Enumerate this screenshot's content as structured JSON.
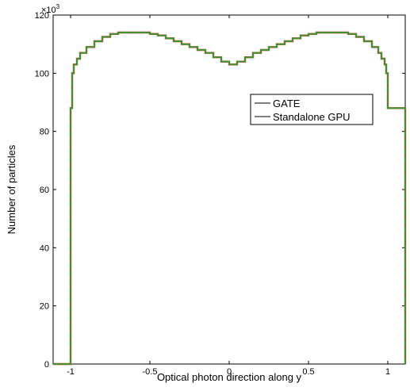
{
  "chart_data": {
    "type": "line",
    "style": "step-histogram",
    "xlabel": "Optical photon direction along y",
    "ylabel": "Number of particles",
    "y_multiplier": "×10",
    "y_multiplier_exponent": "3",
    "xlim": [
      -1.11,
      1.11
    ],
    "ylim": [
      0,
      120
    ],
    "x_ticks": [
      -1,
      -0.5,
      0,
      0.5,
      1
    ],
    "x_tick_labels": [
      "-1",
      "-0.5",
      "0",
      "0.5",
      "1"
    ],
    "y_ticks": [
      0,
      20,
      40,
      60,
      80,
      100,
      120
    ],
    "y_tick_labels": [
      "0",
      "20",
      "40",
      "60",
      "80",
      "100",
      "120"
    ],
    "grid": false,
    "legend_position": "upper-right",
    "x": [
      -1.12,
      -1.0,
      -0.99,
      -0.98,
      -0.96,
      -0.94,
      -0.9,
      -0.85,
      -0.8,
      -0.75,
      -0.7,
      -0.65,
      -0.6,
      -0.55,
      -0.5,
      -0.45,
      -0.4,
      -0.35,
      -0.3,
      -0.25,
      -0.2,
      -0.15,
      -0.1,
      -0.05,
      0,
      0.05,
      0.1,
      0.15,
      0.2,
      0.25,
      0.3,
      0.35,
      0.4,
      0.45,
      0.5,
      0.55,
      0.6,
      0.65,
      0.7,
      0.75,
      0.8,
      0.85,
      0.9,
      0.94,
      0.96,
      0.98,
      0.99,
      1.0,
      1.12
    ],
    "series": [
      {
        "name": "GATE",
        "color": "#d62728",
        "values": [
          0,
          88,
          100,
          103,
          105,
          107,
          109,
          111,
          112.5,
          113.5,
          114,
          114,
          114,
          114,
          113.5,
          113,
          112,
          111,
          110,
          109,
          108,
          107,
          105.5,
          104,
          103,
          104,
          105.5,
          107,
          108,
          109,
          110,
          111,
          112,
          113,
          113.5,
          114,
          114,
          114,
          114,
          113.5,
          112.5,
          111,
          109,
          107,
          105,
          103,
          100,
          88,
          0
        ]
      },
      {
        "name": "Standalone GPU",
        "color": "#2ca02c",
        "values": [
          0,
          88,
          100,
          103,
          105,
          107,
          109,
          111,
          112.5,
          113.5,
          114,
          114,
          114,
          114,
          113.5,
          113,
          112,
          111,
          110,
          109,
          108,
          107,
          105.5,
          104,
          103,
          104,
          105.5,
          107,
          108,
          109,
          110,
          111,
          112,
          113,
          113.5,
          114,
          114,
          114,
          114,
          113.5,
          112.5,
          111,
          109,
          107,
          105,
          103,
          100,
          88,
          0
        ]
      }
    ],
    "legend_line_color": "#555555"
  }
}
